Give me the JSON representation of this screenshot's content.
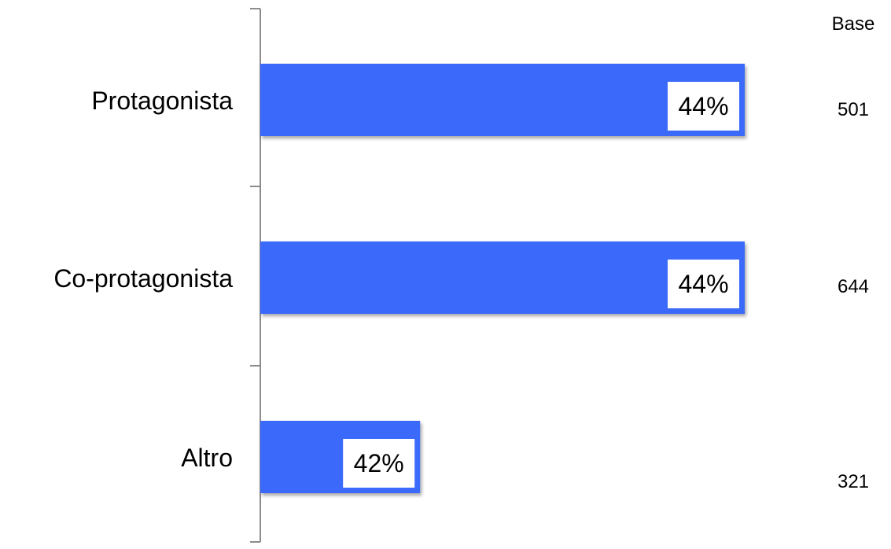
{
  "chart_data": {
    "type": "bar",
    "orientation": "horizontal",
    "categories": [
      "Protagonista",
      "Co-protagonista",
      "Altro"
    ],
    "values": [
      44,
      44,
      42
    ],
    "value_labels": [
      "44%",
      "44%",
      "42%"
    ],
    "bar_color": "#3b6bfa",
    "base_header": "Base",
    "base_values": [
      "501",
      "644",
      "321"
    ],
    "title": "",
    "xlabel": "",
    "ylabel": ""
  }
}
